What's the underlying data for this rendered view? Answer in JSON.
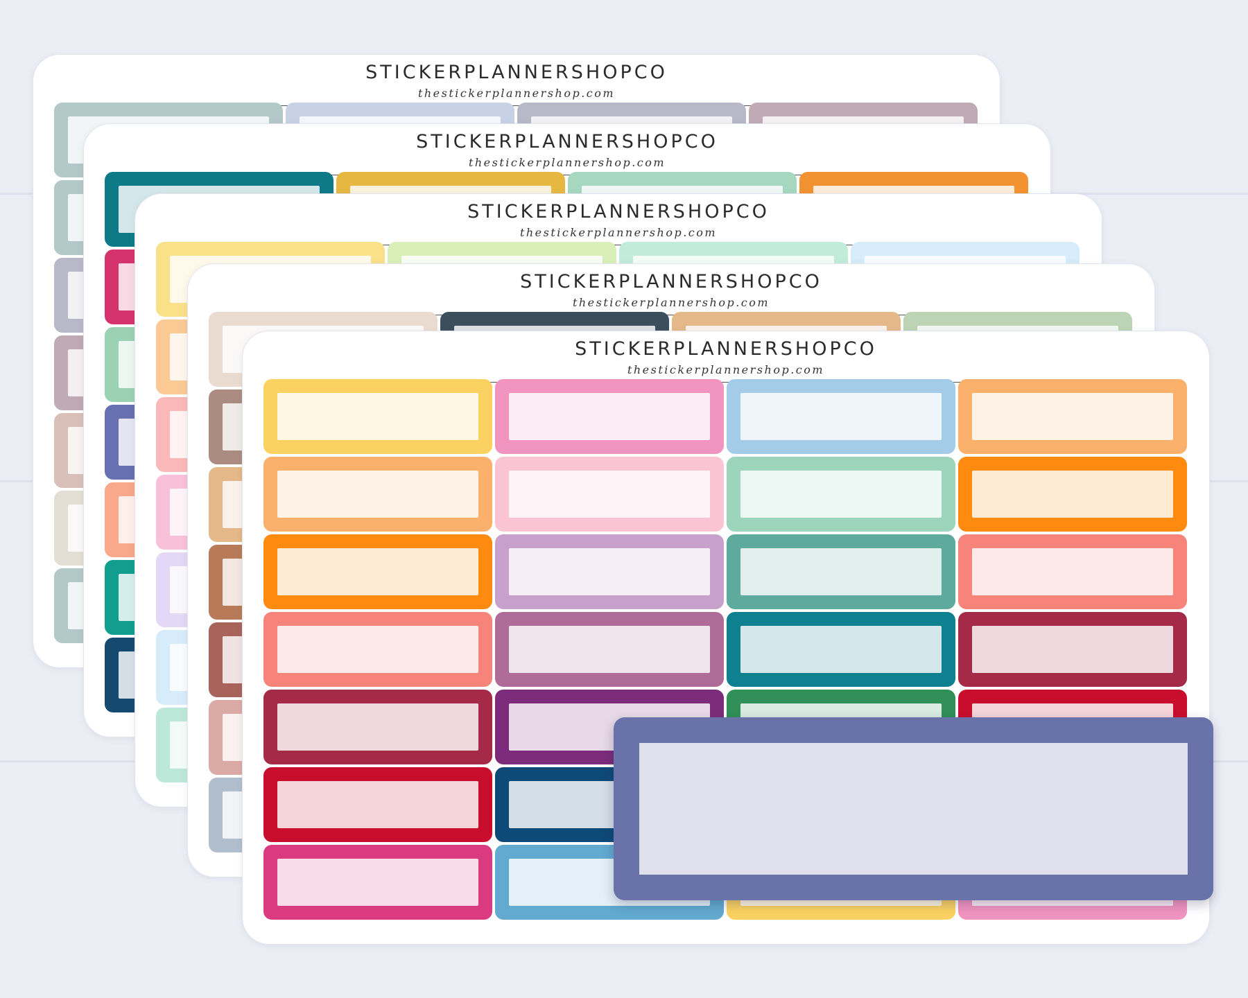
{
  "brand": "STICKERPLANNERSHOPCO",
  "website": "thestickerplannershop.com",
  "sheets": [
    {
      "colors": [
        "#b3c8c8",
        "#c8d2e6",
        "#b8b8c8",
        "#c0aab4",
        "#b3c8c8",
        "#c8d2e6",
        "#b8b8c8",
        "#c0aab4",
        "#b8b8c8",
        "#c8d2e6",
        "#c0aab4",
        "#b3c8c8",
        "#c0aab4",
        "#b8b8c8",
        "#b3c8c8",
        "#c8d2e6",
        "#d8c0b8",
        "#c8d2e6",
        "#b3c8c8",
        "#b8b8c8",
        "#e3dfd4",
        "#b3c8c8",
        "#c0aab4",
        "#c8d2e6",
        "#b3c8c8",
        "#b8b8c8",
        "#c8d2e6",
        "#c0aab4"
      ]
    },
    {
      "colors": [
        "#0e7a88",
        "#e6b842",
        "#a6d8c0",
        "#f39230",
        "#d6336c",
        "#0e7a88",
        "#e6b842",
        "#a6d8c0",
        "#9cd2b4",
        "#f39230",
        "#d6336c",
        "#0e7a88",
        "#6770b0",
        "#a6d8c0",
        "#e6b842",
        "#d6336c",
        "#f9a88c",
        "#0e7a88",
        "#a6d8c0",
        "#e6b842",
        "#129e8e",
        "#d6336c",
        "#f39230",
        "#6770b0",
        "#144a70",
        "#e6b842",
        "#0e7a88",
        "#d6336c"
      ]
    },
    {
      "colors": [
        "#fbe08a",
        "#d8efb8",
        "#c2ecda",
        "#d6ecfa",
        "#fbc994",
        "#fbe08a",
        "#d8efb8",
        "#c2ecda",
        "#fbb8b8",
        "#d6ecfa",
        "#fbc994",
        "#fbe08a",
        "#f9c0da",
        "#c2ecda",
        "#d8efb8",
        "#fbb8b8",
        "#e4d8f6",
        "#fbe08a",
        "#d6ecfa",
        "#fbc994",
        "#d6ecfa",
        "#f9c0da",
        "#c2ecda",
        "#d8efb8",
        "#bce8da",
        "#e4d8f6",
        "#fbe08a",
        "#d6ecfa"
      ]
    },
    {
      "colors": [
        "#eadbd0",
        "#3c4e5c",
        "#e4b888",
        "#bcd4b4",
        "#ac8c80",
        "#eadbd0",
        "#3c4e5c",
        "#e4b888",
        "#e4b888",
        "#bcd4b4",
        "#ac8c80",
        "#eadbd0",
        "#b87a58",
        "#3c4e5c",
        "#e4b888",
        "#bcd4b4",
        "#a8645a",
        "#eadbd0",
        "#ac8c80",
        "#3c4e5c",
        "#dcaaa4",
        "#e4b888",
        "#bcd4b4",
        "#eadbd0",
        "#b0bece",
        "#ac8c80",
        "#3c4e5c",
        "#e4b888"
      ]
    },
    {
      "colors": [
        "#fbd262",
        "#f194c0",
        "#a4cce8",
        "#fbb06c",
        "#fbb06c",
        "#fbc4d4",
        "#9cd4bc",
        "#ff8a10",
        "#ff8a10",
        "#c8a0cc",
        "#5eaa9c",
        "#f6847a",
        "#f6847a",
        "#b06c98",
        "#0e8090",
        "#a42a48",
        "#a42a48",
        "#7c2c7a",
        "#309058",
        "#c80e2c",
        "#c80e2c",
        "#0e4a78",
        "#0e4a78",
        "#f6847a",
        "#da3a80",
        "#62aad0",
        "#fbd262",
        "#f194c0"
      ]
    }
  ],
  "featured_sticker": {
    "color": "#6a72aa"
  }
}
